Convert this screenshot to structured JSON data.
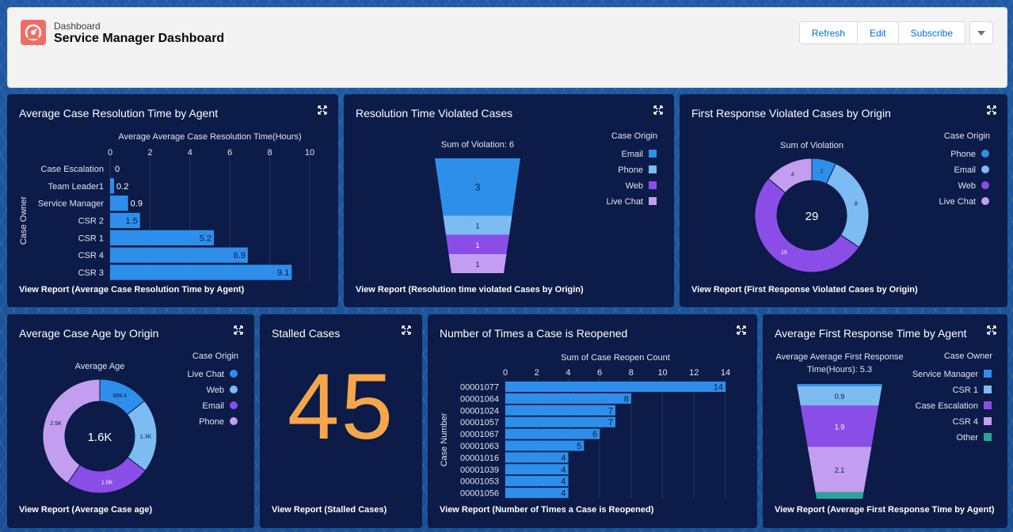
{
  "header": {
    "kicker": "Dashboard",
    "title": "Service Manager Dashboard",
    "buttons": {
      "refresh": "Refresh",
      "edit": "Edit",
      "subscribe": "Subscribe"
    },
    "icon": "dashboard-gauge-icon",
    "icon_color": "#ef6e64"
  },
  "colors": {
    "blue": "#2e8fea",
    "light_blue": "#7dbbf3",
    "purple": "#8b4de8",
    "lavender": "#c39ef0",
    "teal": "#2aa59a",
    "orange": "#f5a64a",
    "card_bg": "#0c1b47"
  },
  "cards": {
    "resolution_by_agent": {
      "title": "Average Case Resolution Time by Agent",
      "view_report": "View Report (Average Case Resolution Time by Agent)"
    },
    "violated": {
      "title": "Resolution Time Violated Cases",
      "view_report": "View Report (Resolution time violated Cases by Origin)"
    },
    "first_response_violated": {
      "title": "First Response Violated Cases by Origin",
      "view_report": "View Report (First Response Violated Cases by Origin)"
    },
    "case_age": {
      "title": "Average Case Age by Origin",
      "view_report": "View Report (Average Case age)"
    },
    "stalled": {
      "title": "Stalled Cases",
      "value": "45",
      "view_report": "View Report (Stalled Cases)"
    },
    "reopened": {
      "title": "Number of Times a Case is Reopened",
      "view_report": "View Report (Number of Times a Case is Reopened)"
    },
    "first_response_time": {
      "title": "Average First Response Time by Agent",
      "view_report": "View Report (Average First Response Time by Agent)"
    }
  },
  "chart_data": [
    {
      "type": "bar",
      "orientation": "horizontal",
      "title": "Average Average Case Resolution Time(Hours)",
      "ylabel": "Case Owner",
      "categories": [
        "Case Escalation",
        "Team Leader1",
        "Service Manager",
        "CSR 2",
        "CSR 1",
        "CSR 4",
        "CSR 3"
      ],
      "values": [
        0,
        0.2,
        0.9,
        1.5,
        5.2,
        6.9,
        9.1
      ],
      "labels": [
        "0",
        "0.2",
        "0.9",
        "1.5",
        "5.2",
        "6.9",
        "9.1"
      ],
      "xticks": [
        "0",
        "2",
        "4",
        "6",
        "8",
        "10"
      ],
      "xlim": [
        0,
        10
      ]
    },
    {
      "type": "funnel",
      "title": "Sum of Violation: 6",
      "legend_title": "Case Origin",
      "categories": [
        "Email",
        "Phone",
        "Web",
        "Live Chat"
      ],
      "values": [
        3,
        1,
        1,
        1
      ],
      "labels": [
        "3",
        "1",
        "1",
        "1"
      ]
    },
    {
      "type": "donut",
      "title": "Sum of Violation",
      "center": "29",
      "legend_title": "Case Origin",
      "categories": [
        "Phone",
        "Email",
        "Web",
        "Live Chat"
      ],
      "values": [
        2,
        8,
        15,
        4
      ],
      "labels": [
        "2",
        "8",
        "15",
        "4"
      ]
    },
    {
      "type": "donut",
      "title": "Average Age",
      "center": "1.6K",
      "legend_title": "Case Origin",
      "categories": [
        "Live Chat",
        "Web",
        "Email",
        "Phone"
      ],
      "values": [
        888.4,
        1300,
        1500,
        2500
      ],
      "labels": [
        "888.4",
        "1.3K",
        "1.5K",
        "2.5K"
      ]
    },
    {
      "type": "bar",
      "orientation": "horizontal",
      "title": "Sum of Case Reopen Count",
      "ylabel": "Case Number",
      "categories": [
        "00001077",
        "00001064",
        "00001024",
        "00001057",
        "00001067",
        "00001063",
        "00001016",
        "00001039",
        "00001053",
        "00001056"
      ],
      "values": [
        14,
        8,
        7,
        7,
        6,
        5,
        4,
        4,
        4,
        4
      ],
      "labels": [
        "14",
        "8",
        "7",
        "7",
        "6",
        "5",
        "4",
        "4",
        "4",
        "4"
      ],
      "xticks": [
        "0",
        "2",
        "4",
        "6",
        "8",
        "10",
        "12",
        "14"
      ],
      "xlim": [
        0,
        14
      ]
    },
    {
      "type": "funnel",
      "title": "Average Average First Response Time(Hours): 5.3",
      "legend_title": "Case Owner",
      "categories": [
        "Service Manager",
        "CSR 1",
        "Case Escalation",
        "CSR 4",
        "Other"
      ],
      "values": [
        0.1,
        0.9,
        1.9,
        2.1,
        0.3
      ],
      "labels": [
        "",
        "0.9",
        "1.9",
        "2.1",
        ""
      ]
    }
  ]
}
